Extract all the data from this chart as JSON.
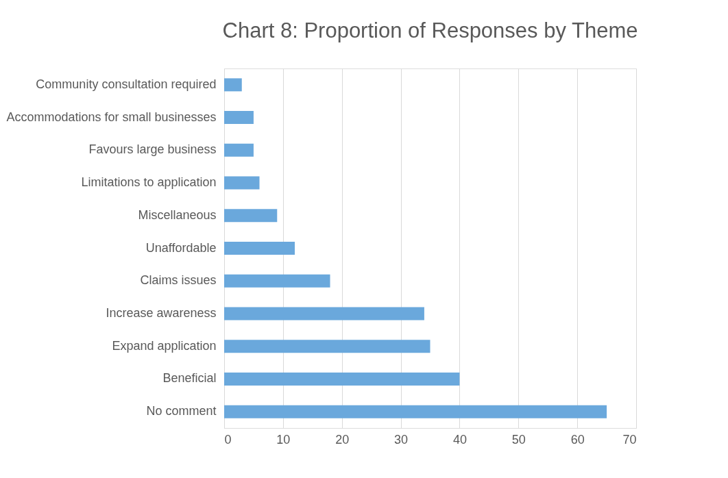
{
  "chart_data": {
    "type": "bar",
    "orientation": "horizontal",
    "title": "Chart 8: Proportion of Responses by Theme",
    "categories": [
      "Community consultation required",
      "Accommodations for small businesses",
      "Favours large business",
      "Limitations to application",
      "Miscellaneous",
      "Unaffordable",
      "Claims issues",
      "Increase awareness",
      "Expand application",
      "Beneficial",
      "No comment"
    ],
    "values": [
      3,
      5,
      5,
      6,
      9,
      12,
      18,
      34,
      35,
      40,
      65
    ],
    "color": "#6aa8dc",
    "xlim": [
      0,
      70
    ],
    "xticks": [
      0,
      10,
      20,
      30,
      40,
      50,
      60,
      70
    ],
    "grid": "x"
  }
}
